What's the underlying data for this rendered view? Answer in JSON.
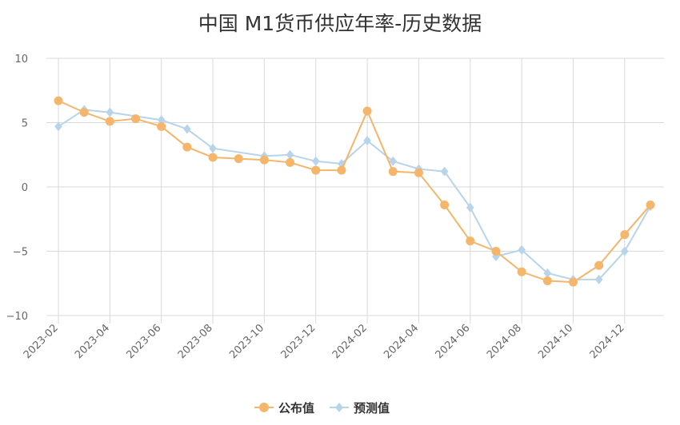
{
  "chart_data": {
    "type": "line",
    "title": "中国 M1货币供应年率-历史数据",
    "xlabel": "",
    "ylabel": "",
    "ylim": [
      -10,
      10
    ],
    "yticks": [
      10,
      5,
      0,
      -5,
      -10
    ],
    "grid": true,
    "legend_position": "bottom",
    "categories": [
      "2023-02",
      "2023-03",
      "2023-04",
      "2023-05",
      "2023-06",
      "2023-07",
      "2023-08",
      "2023-09",
      "2023-10",
      "2023-11",
      "2023-12",
      "2024-01",
      "2024-02",
      "2024-03",
      "2024-04",
      "2024-05",
      "2024-06",
      "2024-07",
      "2024-08",
      "2024-09",
      "2024-10",
      "2024-11",
      "2024-12",
      "2025-01"
    ],
    "tick_labels": [
      "2023-02",
      "2023-04",
      "2023-06",
      "2023-08",
      "2023-10",
      "2023-12",
      "2024-02",
      "2024-04",
      "2024-06",
      "2024-08",
      "2024-10",
      "2024-12"
    ],
    "series": [
      {
        "name": "公布值",
        "color": "#f5b56b",
        "marker": "circle",
        "values": [
          6.7,
          5.8,
          5.1,
          5.3,
          4.7,
          3.1,
          2.3,
          2.2,
          2.1,
          1.9,
          1.3,
          1.3,
          5.9,
          1.2,
          1.1,
          -1.4,
          -4.2,
          -5.0,
          -6.6,
          -7.3,
          -7.4,
          -6.1,
          -3.7,
          -1.4
        ]
      },
      {
        "name": "预测值",
        "color": "#b7d4ea",
        "marker": "diamond",
        "values": [
          4.7,
          6.0,
          5.8,
          null,
          5.2,
          4.5,
          3.0,
          null,
          2.4,
          2.5,
          2.0,
          1.8,
          3.6,
          2.0,
          1.4,
          1.2,
          -1.6,
          -5.4,
          -4.9,
          -6.7,
          -7.2,
          -7.2,
          -5.0,
          -1.5
        ]
      }
    ]
  }
}
